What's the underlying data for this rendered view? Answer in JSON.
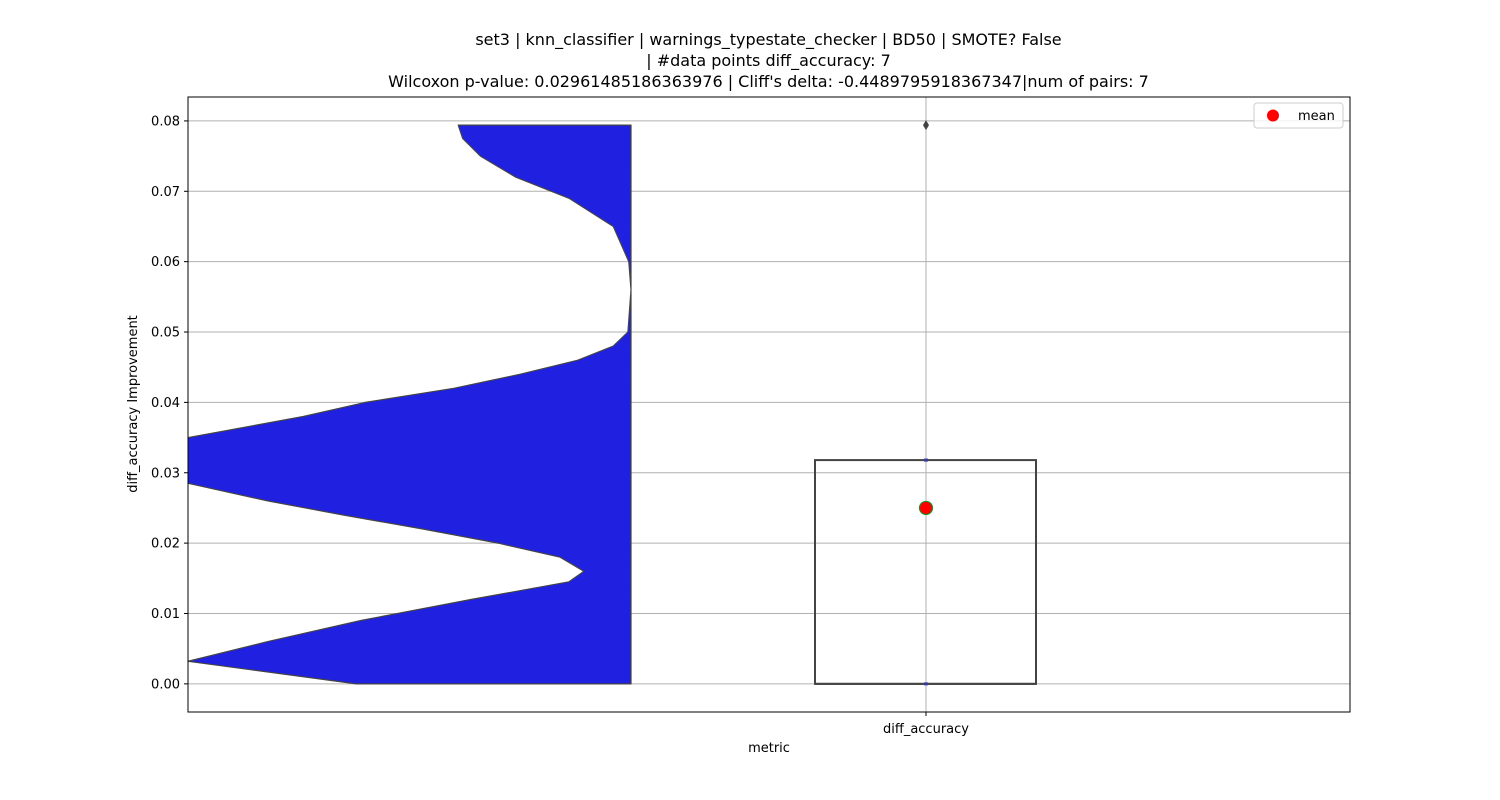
{
  "chart_data": {
    "type": "violin+box",
    "title_lines": [
      "set3 | knn_classifier | warnings_typestate_checker | BD50 | SMOTE? False",
      "| #data points diff_accuracy: 7",
      "Wilcoxon p-value: 0.02961485186363976 | Cliff's delta: -0.4489795918367347|num of pairs: 7"
    ],
    "xlabel": "metric",
    "ylabel": "diff_accuracy Improvement",
    "categories": [
      "diff_accuracy"
    ],
    "ylim": [
      -0.004,
      0.0834
    ],
    "yticks": [
      0.0,
      0.01,
      0.02,
      0.03,
      0.04,
      0.05,
      0.06,
      0.07,
      0.08
    ],
    "ytick_labels": [
      "0.00",
      "0.01",
      "0.02",
      "0.03",
      "0.04",
      "0.05",
      "0.06",
      "0.07",
      "0.08"
    ],
    "grid": true,
    "legend": {
      "placement": "top-right",
      "entries": [
        {
          "label": "mean",
          "color": "#ff0000"
        }
      ]
    },
    "violin": {
      "color": "#2020e0",
      "edge_color": "#444444",
      "y_range": [
        0.0,
        0.0794
      ],
      "density_profile": [
        [
          0.0,
          0.62
        ],
        [
          0.0032,
          1.0
        ],
        [
          0.006,
          0.82
        ],
        [
          0.009,
          0.61
        ],
        [
          0.012,
          0.36
        ],
        [
          0.0145,
          0.14
        ],
        [
          0.016,
          0.106
        ],
        [
          0.018,
          0.16
        ],
        [
          0.02,
          0.3
        ],
        [
          0.022,
          0.47
        ],
        [
          0.024,
          0.65
        ],
        [
          0.026,
          0.82
        ],
        [
          0.0285,
          1.0
        ],
        [
          0.032,
          1.0
        ],
        [
          0.035,
          1.0
        ],
        [
          0.038,
          0.74
        ],
        [
          0.04,
          0.6
        ],
        [
          0.042,
          0.4
        ],
        [
          0.044,
          0.25
        ],
        [
          0.046,
          0.12
        ],
        [
          0.048,
          0.04
        ],
        [
          0.05,
          0.007
        ],
        [
          0.056,
          0.0
        ],
        [
          0.06,
          0.005
        ],
        [
          0.065,
          0.04
        ],
        [
          0.069,
          0.14
        ],
        [
          0.072,
          0.26
        ],
        [
          0.075,
          0.34
        ],
        [
          0.0775,
          0.38
        ],
        [
          0.0794,
          0.39
        ]
      ]
    },
    "box": {
      "color": "#444444",
      "q1": 0.0,
      "median": 0.0,
      "q3": 0.0318,
      "whisker_low": 0.0,
      "whisker_high": 0.0318,
      "outliers": [
        0.0794
      ],
      "mean": 0.025,
      "mean_color": "#ff0000",
      "mean_edge_color": "#228b22"
    }
  }
}
